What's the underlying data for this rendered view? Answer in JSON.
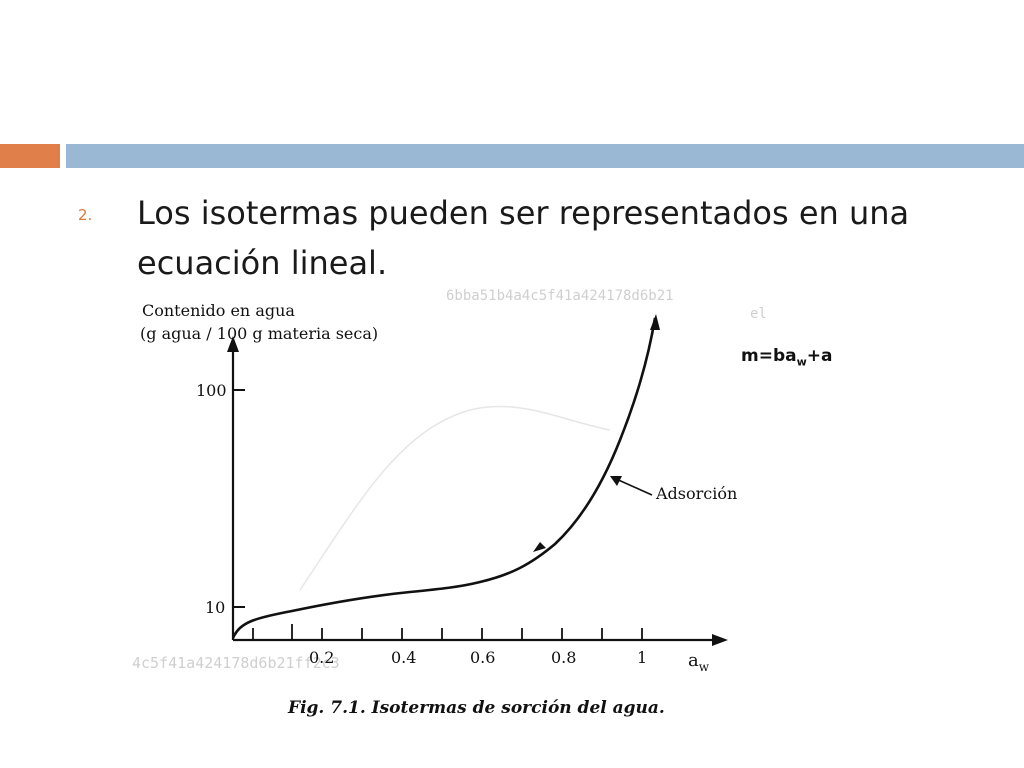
{
  "slide": {
    "bullet_number": "2.",
    "bullet_text": "Los isotermas pueden ser representados en una ecuación lineal.",
    "equation_lhs": "m=ba",
    "equation_sub": "w",
    "equation_rhs": "+a",
    "accent_colors": {
      "orange": "#e07f4a",
      "blue": "#9ab7d3"
    }
  },
  "figure": {
    "ylabel_line1": "Contenido en agua",
    "ylabel_line2": "(g agua / 100 g materia seca)",
    "y_tick_100": "100",
    "y_tick_10": "10",
    "x_ticks": [
      "0.2",
      "0.4",
      "0.6",
      "0.8",
      "1"
    ],
    "xlabel_main": "a",
    "xlabel_sub": "w",
    "curve_label": "Adsorción",
    "caption": "Fig. 7.1. Isotermas de sorción del agua.",
    "watermark_top": "6bba51b4a4c5f41a424178d6b21",
    "watermark_top_small": "el",
    "watermark_bottom": "4c5f41a424178d6b21ff2c3"
  }
}
